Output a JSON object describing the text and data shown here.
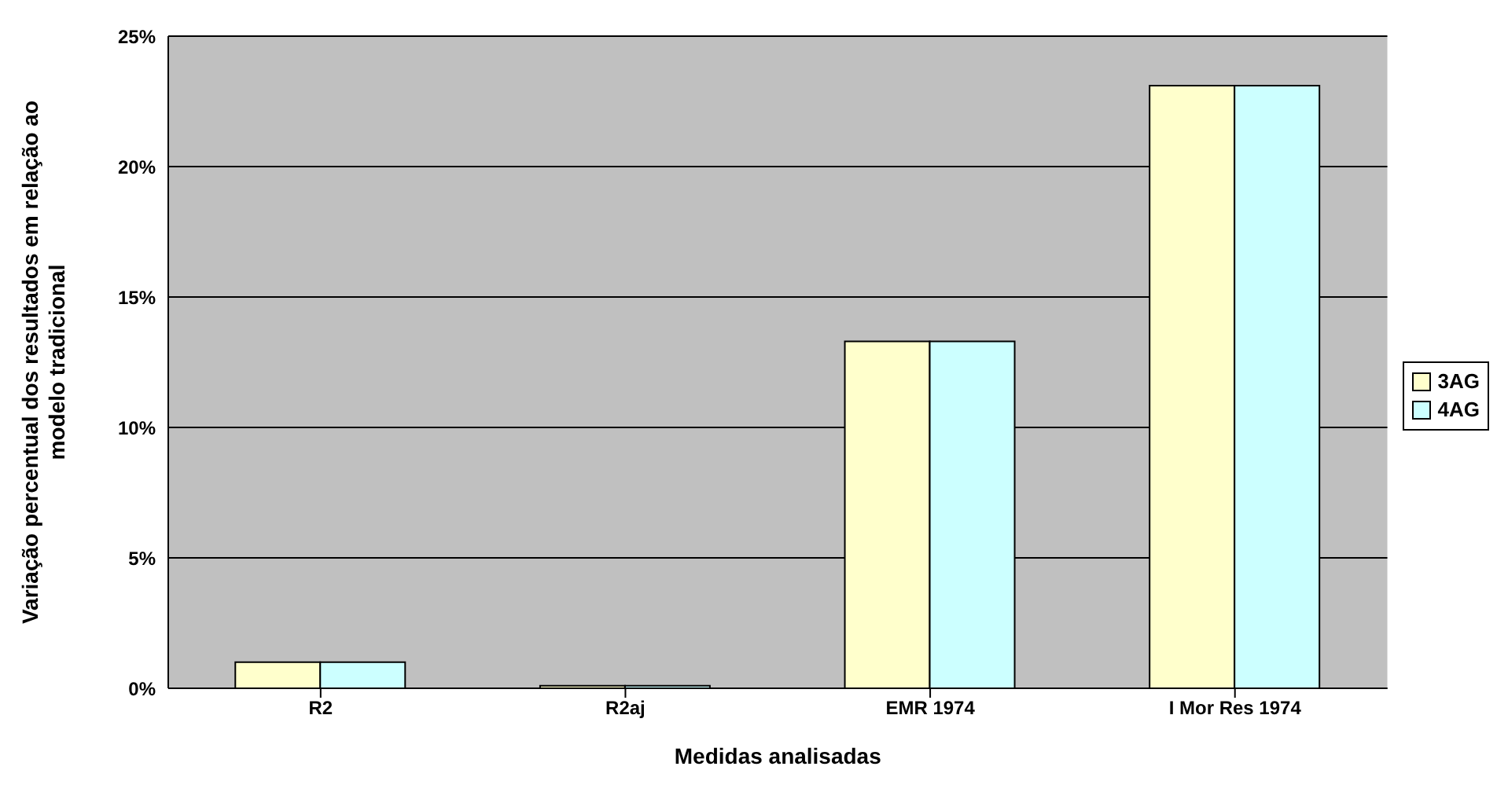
{
  "chart_data": {
    "type": "bar",
    "xlabel": "Medidas analisadas",
    "ylabel": "Variação percentual dos resultados em relação ao\nmodelo tradicional",
    "categories": [
      "R2",
      "R2aj",
      "EMR 1974",
      "I Mor Res 1974"
    ],
    "series": [
      {
        "name": "3AG",
        "color": "#ffffcc",
        "values": [
          1.0,
          0.1,
          13.3,
          23.1
        ]
      },
      {
        "name": "4AG",
        "color": "#ccffff",
        "values": [
          1.0,
          0.1,
          13.3,
          23.1
        ]
      }
    ],
    "ylim": [
      0,
      25
    ],
    "yticks": [
      {
        "value": 0,
        "label": "0%"
      },
      {
        "value": 5,
        "label": "5%"
      },
      {
        "value": 10,
        "label": "10%"
      },
      {
        "value": 15,
        "label": "15%"
      },
      {
        "value": 20,
        "label": "20%"
      },
      {
        "value": 25,
        "label": "25%"
      }
    ],
    "grid": "y",
    "legend": "right"
  }
}
